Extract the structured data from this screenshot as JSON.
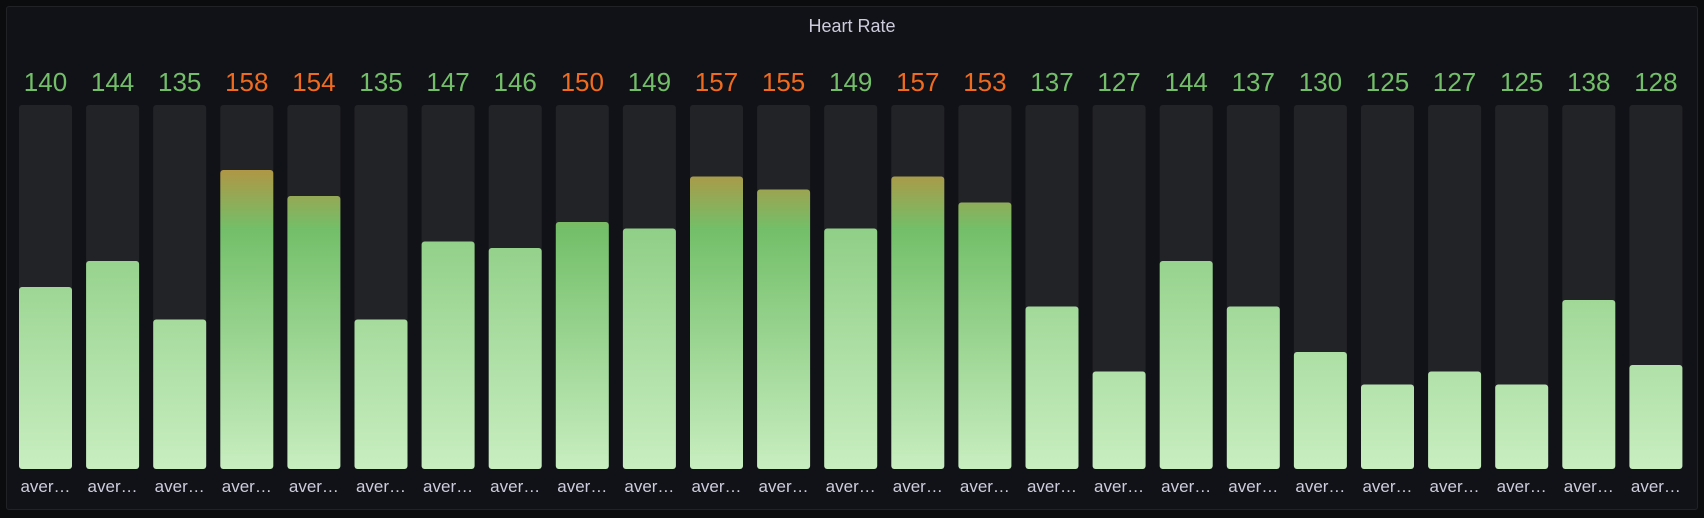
{
  "panel": {
    "title": "Heart Rate"
  },
  "colors": {
    "background": "#111217",
    "track": "#222327",
    "text_label": "#ccccdc",
    "green_value": "#73bf69",
    "green_light": "#c8eec0",
    "orange": "#f06b1e"
  },
  "chart_data": {
    "type": "bar",
    "style": "bar-gauge-vertical-gradient",
    "title": "Heart Rate",
    "categories": [
      "aver…",
      "aver…",
      "aver…",
      "aver…",
      "aver…",
      "aver…",
      "aver…",
      "aver…",
      "aver…",
      "aver…",
      "aver…",
      "aver…",
      "aver…",
      "aver…",
      "aver…",
      "aver…",
      "aver…",
      "aver…",
      "aver…",
      "aver…",
      "aver…",
      "aver…",
      "aver…",
      "aver…",
      "aver…"
    ],
    "values": [
      140,
      144,
      135,
      158,
      154,
      135,
      147,
      146,
      150,
      149,
      157,
      155,
      149,
      157,
      153,
      137,
      127,
      144,
      137,
      130,
      125,
      127,
      125,
      138,
      128
    ],
    "ylim": [
      112,
      168
    ],
    "thresholds": [
      {
        "color": "green",
        "value": null
      },
      {
        "color": "orange",
        "value": 150
      }
    ],
    "grid": false,
    "legend": "none"
  }
}
